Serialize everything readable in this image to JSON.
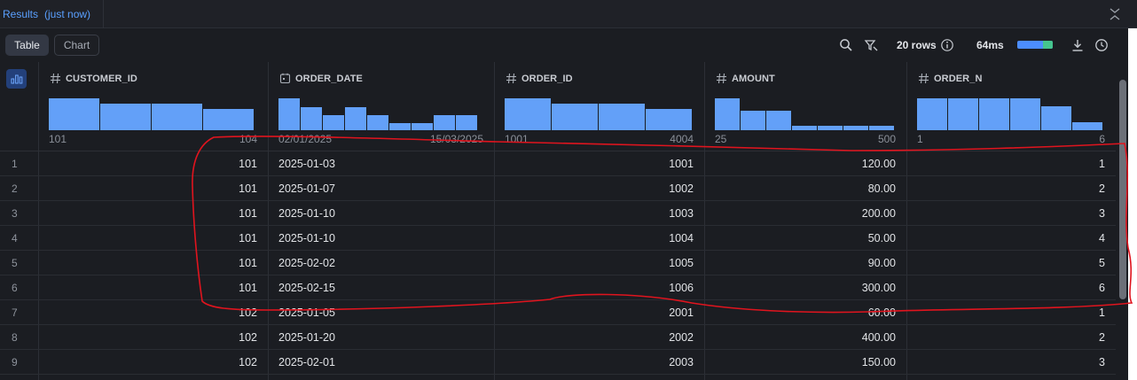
{
  "title_tab": {
    "label": "Results",
    "time": "(just now)"
  },
  "toolbar": {
    "table_label": "Table",
    "chart_label": "Chart",
    "rows_text": "20 rows",
    "duration_text": "64ms"
  },
  "columns": [
    {
      "name": "CUSTOMER_ID",
      "type_icon": "hash-icon",
      "hist": [
        0.95,
        0.8,
        0.8,
        0.62
      ],
      "min": "101",
      "max": "104"
    },
    {
      "name": "ORDER_DATE",
      "type_icon": "calendar-icon",
      "hist": [
        0.95,
        0.68,
        0.45,
        0.68,
        0.45,
        0.22,
        0.22,
        0.45,
        0.45
      ],
      "min": "02/01/2025",
      "max": "15/03/2025"
    },
    {
      "name": "ORDER_ID",
      "type_icon": "hash-icon",
      "hist": [
        0.95,
        0.8,
        0.8,
        0.62
      ],
      "min": "1001",
      "max": "4004"
    },
    {
      "name": "AMOUNT",
      "type_icon": "hash-icon",
      "hist": [
        0.95,
        0.58,
        0.58,
        0.14,
        0.14,
        0.14,
        0.14
      ],
      "min": "25",
      "max": "500"
    },
    {
      "name": "ORDER_N",
      "type_icon": "hash-icon",
      "hist": [
        0.95,
        0.95,
        0.95,
        0.95,
        0.7,
        0.24
      ],
      "min": "1",
      "max": "6"
    }
  ],
  "rows": [
    {
      "n": "1",
      "customer_id": "101",
      "order_date": "2025-01-03",
      "order_id": "1001",
      "amount": "120.00",
      "order_n": "1"
    },
    {
      "n": "2",
      "customer_id": "101",
      "order_date": "2025-01-07",
      "order_id": "1002",
      "amount": "80.00",
      "order_n": "2"
    },
    {
      "n": "3",
      "customer_id": "101",
      "order_date": "2025-01-10",
      "order_id": "1003",
      "amount": "200.00",
      "order_n": "3"
    },
    {
      "n": "4",
      "customer_id": "101",
      "order_date": "2025-01-10",
      "order_id": "1004",
      "amount": "50.00",
      "order_n": "4"
    },
    {
      "n": "5",
      "customer_id": "101",
      "order_date": "2025-02-02",
      "order_id": "1005",
      "amount": "90.00",
      "order_n": "5"
    },
    {
      "n": "6",
      "customer_id": "101",
      "order_date": "2025-02-15",
      "order_id": "1006",
      "amount": "300.00",
      "order_n": "6"
    },
    {
      "n": "7",
      "customer_id": "102",
      "order_date": "2025-01-05",
      "order_id": "2001",
      "amount": "60.00",
      "order_n": "1"
    },
    {
      "n": "8",
      "customer_id": "102",
      "order_date": "2025-01-20",
      "order_id": "2002",
      "amount": "400.00",
      "order_n": "2"
    },
    {
      "n": "9",
      "customer_id": "102",
      "order_date": "2025-02-01",
      "order_id": "2003",
      "amount": "150.00",
      "order_n": "3"
    }
  ],
  "colors": {
    "accent": "#5aa0ff",
    "histogram": "#63a0f8",
    "annotation": "#e0141e",
    "timing_green": "#45c48e"
  }
}
